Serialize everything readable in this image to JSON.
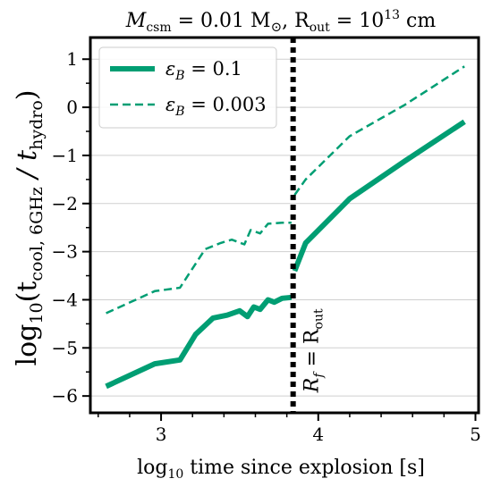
{
  "chart_data": {
    "type": "line",
    "title": {
      "main": "M",
      "main_sub": "csm",
      "middle": " = 0.01 M",
      "sun": "⊙",
      "sep": ",  R",
      "r_sub": "out",
      "tail": " = 10",
      "sup": "13",
      "unit": " cm"
    },
    "xlabel": {
      "pre": "log",
      "sub": "10",
      "post": " time since explosion [s]"
    },
    "ylabel": {
      "pre": "log",
      "sub10": "10",
      "open": "(t",
      "sub_cool": "cool, 6GHz",
      "slash": " / t",
      "sub_hydro": "hydro",
      "close": ")"
    },
    "xlim": [
      2.55,
      5.02
    ],
    "ylim": [
      -6.35,
      1.45
    ],
    "xticks": [
      3,
      4,
      5
    ],
    "xtick_labels": [
      "3",
      "4",
      "5"
    ],
    "yticks": [
      -6,
      -5,
      -4,
      -3,
      -2,
      -1,
      0,
      1
    ],
    "ytick_labels": [
      "−6",
      "−5",
      "−4",
      "−3",
      "−2",
      "−1",
      "0",
      "1"
    ],
    "grid": "horizontal",
    "legend_position": "top-left",
    "series": [
      {
        "name": "0.1",
        "legend_text": {
          "sym": "ε",
          "sub": "B",
          "eq": " = 0.1"
        },
        "color": "#009E73",
        "style": "solid",
        "segments": [
          [
            [
              2.65,
              -5.8
            ],
            [
              2.96,
              -5.33
            ],
            [
              3.12,
              -5.25
            ],
            [
              3.22,
              -4.72
            ],
            [
              3.33,
              -4.38
            ],
            [
              3.42,
              -4.32
            ],
            [
              3.5,
              -4.23
            ],
            [
              3.55,
              -4.35
            ],
            [
              3.59,
              -4.15
            ],
            [
              3.63,
              -4.2
            ],
            [
              3.68,
              -4.0
            ],
            [
              3.72,
              -4.05
            ],
            [
              3.77,
              -3.97
            ],
            [
              3.83,
              -3.95
            ]
          ],
          [
            [
              3.85,
              -3.4
            ],
            [
              3.92,
              -2.82
            ],
            [
              4.2,
              -1.9
            ],
            [
              4.55,
              -1.12
            ],
            [
              4.93,
              -0.3
            ]
          ]
        ]
      },
      {
        "name": "0.003",
        "legend_text": {
          "sym": "ε",
          "sub": "B",
          "eq": " = 0.003"
        },
        "color": "#009E73",
        "style": "dashed",
        "segments": [
          [
            [
              2.65,
              -4.28
            ],
            [
              2.96,
              -3.82
            ],
            [
              3.12,
              -3.75
            ],
            [
              3.18,
              -3.45
            ],
            [
              3.28,
              -2.95
            ],
            [
              3.38,
              -2.82
            ],
            [
              3.45,
              -2.75
            ],
            [
              3.53,
              -2.85
            ],
            [
              3.57,
              -2.55
            ],
            [
              3.63,
              -2.62
            ],
            [
              3.68,
              -2.42
            ],
            [
              3.77,
              -2.4
            ],
            [
              3.83,
              -2.4
            ]
          ],
          [
            [
              3.85,
              -1.82
            ],
            [
              3.92,
              -1.5
            ],
            [
              4.2,
              -0.6
            ],
            [
              4.55,
              0.05
            ],
            [
              4.93,
              0.85
            ]
          ]
        ]
      }
    ],
    "vline": {
      "x": 3.84,
      "label": {
        "r": "R",
        "rsub": "f",
        "eq": " = R",
        "esub": "out"
      }
    }
  }
}
